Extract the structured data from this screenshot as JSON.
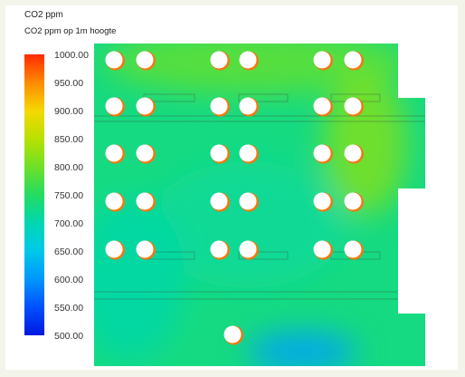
{
  "chart_data": {
    "type": "heatmap",
    "title": "CO2 ppm",
    "subtitle": "CO2 ppm op 1m hoogte",
    "colorbar": {
      "min": 500,
      "max": 1000,
      "ticks": [
        "1000.00",
        "950.00",
        "900.00",
        "850.00",
        "800.00",
        "750.00",
        "700.00",
        "650.00",
        "600.00",
        "550.00",
        "500.00"
      ],
      "colors": [
        "#ff2a00",
        "#ff8a00",
        "#f5d800",
        "#b8e100",
        "#6fe028",
        "#23dc62",
        "#00d7b0",
        "#00c8e8",
        "#0096ff",
        "#0050ff",
        "#0018e0"
      ]
    },
    "background_level_ppm": 730,
    "plan": {
      "grid_columns": 6,
      "grid_rows": 5,
      "extra_outlet_count": 1
    },
    "regions": [
      {
        "name": "top-band",
        "approx_ppm": 790
      },
      {
        "name": "right-upper",
        "approx_ppm": 810
      },
      {
        "name": "center-field",
        "approx_ppm": 715
      },
      {
        "name": "left-lower",
        "approx_ppm": 705
      },
      {
        "name": "bottom-pocket",
        "approx_ppm": 610
      }
    ]
  }
}
